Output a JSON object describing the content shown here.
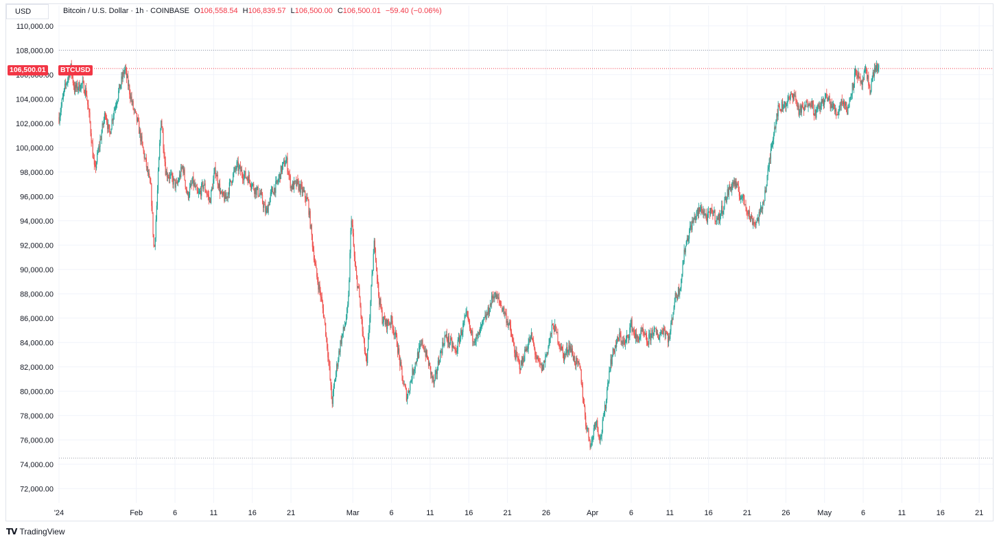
{
  "header": {
    "currency": "USD",
    "title": "Bitcoin / U.S. Dollar · 1h · COINBASE",
    "ohlc": {
      "o_label": "O",
      "o_value": "106,558.54",
      "h_label": "H",
      "h_value": "106,839.57",
      "l_label": "L",
      "l_value": "106,500.00",
      "c_label": "C",
      "c_value": "106,500.01",
      "change": "−59.40 (−0.06%)"
    }
  },
  "price_tag": {
    "value": "106,500.01",
    "symbol": "BTCUSD"
  },
  "footer": {
    "brand": "TradingView",
    "logo_glyph": "𝗧𝗩"
  },
  "colors": {
    "up": "#26a69a",
    "down": "#ef5350",
    "last_price": "#f23645",
    "grid": "#f0f3fa",
    "text": "#131722"
  },
  "chart_data": {
    "type": "candlestick",
    "interval": "1h",
    "symbol": "BTCUSD",
    "ylim": [
      71000,
      111000
    ],
    "y_ticks": [
      72000,
      74000,
      76000,
      78000,
      80000,
      82000,
      84000,
      86000,
      88000,
      90000,
      92000,
      94000,
      96000,
      98000,
      100000,
      102000,
      104000,
      106000,
      108000,
      110000
    ],
    "y_tick_labels": [
      "72,000.00",
      "74,000.00",
      "76,000.00",
      "78,000.00",
      "80,000.00",
      "82,000.00",
      "84,000.00",
      "86,000.00",
      "88,000.00",
      "90,000.00",
      "92,000.00",
      "94,000.00",
      "96,000.00",
      "98,000.00",
      "100,000.00",
      "102,000.00",
      "104,000.00",
      "106,000.00",
      "108,000.00",
      "110,000.00"
    ],
    "x_range_days": [
      0,
      120.5
    ],
    "x_ticks": [
      {
        "day": 0,
        "label": "'24"
      },
      {
        "day": 10,
        "label": "Feb"
      },
      {
        "day": 15,
        "label": "6"
      },
      {
        "day": 20,
        "label": "11"
      },
      {
        "day": 25,
        "label": "16"
      },
      {
        "day": 30,
        "label": "21"
      },
      {
        "day": 38,
        "label": "Mar"
      },
      {
        "day": 43,
        "label": "6"
      },
      {
        "day": 48,
        "label": "11"
      },
      {
        "day": 53,
        "label": "16"
      },
      {
        "day": 58,
        "label": "21"
      },
      {
        "day": 63,
        "label": "26"
      },
      {
        "day": 69,
        "label": "Apr"
      },
      {
        "day": 74,
        "label": "6"
      },
      {
        "day": 79,
        "label": "11"
      },
      {
        "day": 84,
        "label": "16"
      },
      {
        "day": 89,
        "label": "21"
      },
      {
        "day": 94,
        "label": "26"
      },
      {
        "day": 99,
        "label": "May"
      },
      {
        "day": 104,
        "label": "6"
      },
      {
        "day": 109,
        "label": "11"
      },
      {
        "day": 114,
        "label": "16"
      },
      {
        "day": 119,
        "label": "21"
      }
    ],
    "last_price": 106500.01,
    "range_high_line": 108000,
    "range_low_line": 74500,
    "price_path": [
      [
        0,
        102500
      ],
      [
        0.8,
        105000
      ],
      [
        1.5,
        106600
      ],
      [
        2,
        104800
      ],
      [
        3,
        105200
      ],
      [
        3.5,
        104600
      ],
      [
        4,
        102000
      ],
      [
        4.6,
        98000
      ],
      [
        5.3,
        100500
      ],
      [
        6,
        103000
      ],
      [
        6.5,
        101000
      ],
      [
        7,
        102800
      ],
      [
        7.8,
        104800
      ],
      [
        8.5,
        106500
      ],
      [
        9,
        105000
      ],
      [
        9.6,
        103200
      ],
      [
        10.2,
        102000
      ],
      [
        10.8,
        100000
      ],
      [
        11.3,
        98500
      ],
      [
        11.9,
        96500
      ],
      [
        12.3,
        91300
      ],
      [
        12.7,
        96000
      ],
      [
        13.2,
        102600
      ],
      [
        13.8,
        98000
      ],
      [
        14.5,
        97500
      ],
      [
        15.2,
        96800
      ],
      [
        16,
        98500
      ],
      [
        16.6,
        96000
      ],
      [
        17.3,
        97200
      ],
      [
        18,
        96000
      ],
      [
        18.7,
        97000
      ],
      [
        19.5,
        95600
      ],
      [
        20.2,
        98200
      ],
      [
        21,
        96000
      ],
      [
        21.6,
        95800
      ],
      [
        22.3,
        97400
      ],
      [
        23,
        98500
      ],
      [
        23.8,
        97800
      ],
      [
        24.5,
        97500
      ],
      [
        25.3,
        96600
      ],
      [
        26,
        96200
      ],
      [
        26.8,
        94600
      ],
      [
        27.4,
        96200
      ],
      [
        28.2,
        97000
      ],
      [
        28.8,
        98300
      ],
      [
        29.4,
        99000
      ],
      [
        30,
        96800
      ],
      [
        30.8,
        97000
      ],
      [
        31.5,
        96400
      ],
      [
        32.2,
        95500
      ],
      [
        32.8,
        92000
      ],
      [
        33.3,
        89500
      ],
      [
        33.8,
        88000
      ],
      [
        34.3,
        86000
      ],
      [
        34.8,
        83000
      ],
      [
        35.3,
        79000
      ],
      [
        35.8,
        81500
      ],
      [
        36.4,
        84000
      ],
      [
        37,
        85500
      ],
      [
        37.4,
        87000
      ],
      [
        37.8,
        94500
      ],
      [
        38.3,
        90000
      ],
      [
        38.8,
        88000
      ],
      [
        39.3,
        84500
      ],
      [
        39.8,
        82000
      ],
      [
        40.3,
        87500
      ],
      [
        40.8,
        92500
      ],
      [
        41.3,
        88000
      ],
      [
        41.8,
        86000
      ],
      [
        42.3,
        85500
      ],
      [
        43,
        85800
      ],
      [
        43.7,
        84000
      ],
      [
        44.4,
        81000
      ],
      [
        45,
        79500
      ],
      [
        45.7,
        81500
      ],
      [
        46.4,
        83000
      ],
      [
        47,
        84000
      ],
      [
        47.7,
        82500
      ],
      [
        48.5,
        80500
      ],
      [
        49.2,
        82800
      ],
      [
        49.9,
        84500
      ],
      [
        50.6,
        84000
      ],
      [
        51.3,
        83200
      ],
      [
        52,
        84800
      ],
      [
        52.7,
        86200
      ],
      [
        53.4,
        84500
      ],
      [
        54.1,
        84300
      ],
      [
        54.8,
        85500
      ],
      [
        55.5,
        86500
      ],
      [
        56.2,
        88000
      ],
      [
        56.9,
        87400
      ],
      [
        57.6,
        86500
      ],
      [
        58.3,
        85200
      ],
      [
        59,
        83000
      ],
      [
        59.7,
        82000
      ],
      [
        60.4,
        83500
      ],
      [
        61.1,
        84500
      ],
      [
        61.8,
        82500
      ],
      [
        62.5,
        81800
      ],
      [
        63.2,
        83500
      ],
      [
        63.9,
        85500
      ],
      [
        64.6,
        84200
      ],
      [
        65.3,
        82800
      ],
      [
        66,
        83800
      ],
      [
        66.7,
        82500
      ],
      [
        67.4,
        81800
      ],
      [
        68.1,
        77500
      ],
      [
        68.8,
        75500
      ],
      [
        69.4,
        77800
      ],
      [
        70,
        76000
      ],
      [
        70.6,
        78500
      ],
      [
        71.2,
        82000
      ],
      [
        71.8,
        83500
      ],
      [
        72.5,
        84500
      ],
      [
        73.2,
        83800
      ],
      [
        74,
        85500
      ],
      [
        74.7,
        84200
      ],
      [
        75.4,
        84800
      ],
      [
        76.1,
        84000
      ],
      [
        76.8,
        85000
      ],
      [
        77.5,
        84500
      ],
      [
        78.2,
        85200
      ],
      [
        78.9,
        84200
      ],
      [
        79.6,
        87500
      ],
      [
        80.3,
        88500
      ],
      [
        81,
        92000
      ],
      [
        81.7,
        93500
      ],
      [
        82.4,
        94500
      ],
      [
        83.1,
        95000
      ],
      [
        83.8,
        94200
      ],
      [
        84.5,
        94800
      ],
      [
        85.2,
        94000
      ],
      [
        85.9,
        95200
      ],
      [
        86.6,
        96500
      ],
      [
        87.3,
        97200
      ],
      [
        88,
        96200
      ],
      [
        88.7,
        95500
      ],
      [
        89.4,
        94200
      ],
      [
        90.1,
        93800
      ],
      [
        90.8,
        94800
      ],
      [
        91.5,
        97000
      ],
      [
        92.2,
        100500
      ],
      [
        92.9,
        103000
      ],
      [
        93.6,
        103500
      ],
      [
        94.3,
        103800
      ],
      [
        95,
        104500
      ],
      [
        95.7,
        103000
      ],
      [
        96.4,
        103200
      ],
      [
        97.1,
        104000
      ],
      [
        97.8,
        102800
      ],
      [
        98.5,
        103500
      ],
      [
        99.2,
        104200
      ],
      [
        99.9,
        103500
      ],
      [
        100.6,
        102800
      ],
      [
        101.3,
        104000
      ],
      [
        102,
        103000
      ],
      [
        102.5,
        104800
      ],
      [
        103.1,
        106400
      ],
      [
        103.7,
        105000
      ],
      [
        104.3,
        106200
      ],
      [
        104.9,
        104800
      ],
      [
        105.5,
        106600
      ],
      [
        106.1,
        106500
      ]
    ]
  }
}
